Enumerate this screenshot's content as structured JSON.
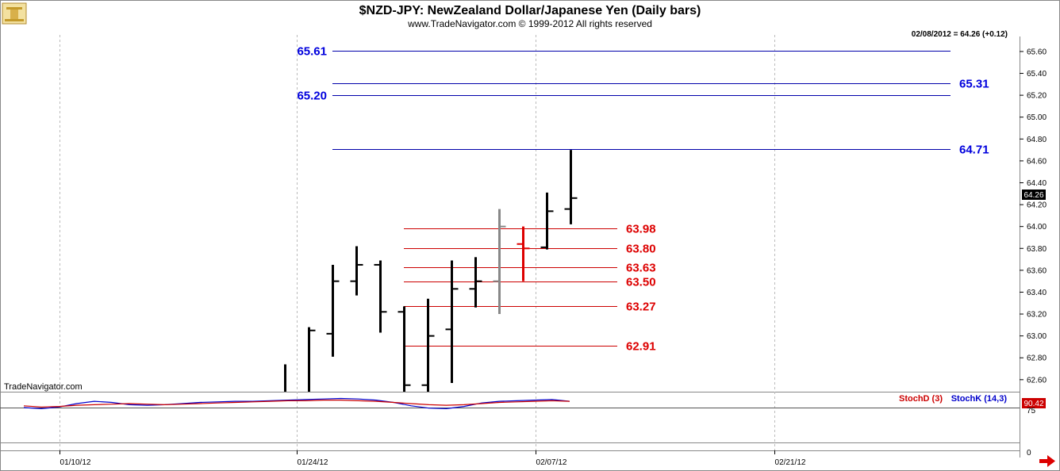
{
  "chart_data": {
    "type": "ohlc",
    "title": "$NZD-JPY:  NewZealand Dollar/Japanese Yen  (Daily bars)",
    "subtitle": "www.TradeNavigator.com © 1999-2012 All rights reserved",
    "last_quote": "02/08/2012 = 64.26 (+0.12)",
    "current_price_label": "64.26",
    "watermark": "TradeNavigator.com",
    "ylim": [
      62.49,
      65.73
    ],
    "y_ticks": [
      "65.60",
      "65.40",
      "65.20",
      "65.00",
      "64.80",
      "64.60",
      "64.40",
      "64.20",
      "64.00",
      "63.80",
      "63.60",
      "63.40",
      "63.20",
      "63.00",
      "62.80",
      "62.60"
    ],
    "x_tick_labels": [
      "01/10/12",
      "01/24/12",
      "02/07/12",
      "02/21/12"
    ],
    "bars": [
      {
        "date": "01/23/12",
        "high": 62.74,
        "low": 62.49,
        "open": null,
        "close": null,
        "color": "#000000"
      },
      {
        "date": "01/24/12",
        "high": 63.08,
        "low": 62.49,
        "open": null,
        "close": 63.05,
        "color": "#000000"
      },
      {
        "date": "01/25/12",
        "high": 63.65,
        "low": 62.81,
        "open": 63.02,
        "close": 63.5,
        "color": "#000000"
      },
      {
        "date": "01/26/12",
        "high": 63.82,
        "low": 63.37,
        "open": 63.5,
        "close": 63.65,
        "color": "#000000"
      },
      {
        "date": "01/27/12",
        "high": 63.69,
        "low": 63.03,
        "open": 63.65,
        "close": 63.22,
        "color": "#000000"
      },
      {
        "date": "01/30/12",
        "high": 63.27,
        "low": 62.49,
        "open": 63.22,
        "close": 62.55,
        "color": "#000000"
      },
      {
        "date": "01/31/12",
        "high": 63.34,
        "low": 62.49,
        "open": 62.55,
        "close": 63.0,
        "color": "#000000"
      },
      {
        "date": "02/01/12",
        "high": 63.69,
        "low": 62.57,
        "open": 63.06,
        "close": 63.43,
        "color": "#000000"
      },
      {
        "date": "02/02/12",
        "high": 63.72,
        "low": 63.26,
        "open": 63.43,
        "close": 63.5,
        "color": "#000000"
      },
      {
        "date": "02/03/12",
        "high": 64.16,
        "low": 63.2,
        "open": 63.5,
        "close": 64.0,
        "color": "#888888"
      },
      {
        "date": "02/06/12",
        "high": 64.0,
        "low": 63.5,
        "open": 63.84,
        "close": 63.8,
        "color": "#dd0000"
      },
      {
        "date": "02/07/12",
        "high": 64.31,
        "low": 63.79,
        "open": 63.81,
        "close": 64.14,
        "color": "#000000"
      },
      {
        "date": "02/08/12",
        "high": 64.7,
        "low": 64.02,
        "open": 64.16,
        "close": 64.26,
        "color": "#000000"
      }
    ],
    "levels_blue": [
      {
        "value": 65.61,
        "label": "65.61",
        "label_side": "left"
      },
      {
        "value": 65.31,
        "label": "65.31",
        "label_side": "right"
      },
      {
        "value": 65.2,
        "label": "65.20",
        "label_side": "left"
      },
      {
        "value": 64.71,
        "label": "64.71",
        "label_side": "right"
      }
    ],
    "levels_red": [
      {
        "value": 63.98,
        "label": "63.98"
      },
      {
        "value": 63.8,
        "label": "63.80"
      },
      {
        "value": 63.63,
        "label": "63.63"
      },
      {
        "value": 63.5,
        "label": "63.50"
      },
      {
        "value": 63.27,
        "label": "63.27"
      },
      {
        "value": 62.91,
        "label": "62.91"
      }
    ],
    "stochastic": {
      "ylim": [
        0,
        100
      ],
      "ref_level": 75,
      "tick_75": "75",
      "tick_0": "0",
      "value_label": "90.42",
      "legend_d": "StochD (3)",
      "legend_k": "StochK (14,3)",
      "stoch_d": [
        78,
        76,
        77,
        79,
        80,
        81,
        82,
        81,
        80,
        81,
        82,
        83,
        84,
        85,
        86,
        87,
        87,
        88,
        88,
        87,
        86,
        84,
        82,
        80,
        79,
        80,
        82,
        84,
        85,
        86,
        87,
        86
      ],
      "stoch_k": [
        75,
        73,
        76,
        82,
        86,
        84,
        80,
        79,
        80,
        82,
        84,
        85,
        86,
        86,
        87,
        88,
        89,
        90,
        91,
        90,
        88,
        84,
        78,
        74,
        73,
        77,
        83,
        86,
        87,
        88,
        89,
        86
      ]
    }
  },
  "colors": {
    "blue_level": "#0000aa",
    "blue_label": "#0000dd",
    "red_level": "#cc0000",
    "red_label": "#dd0000",
    "stoch_d": "#cc0000",
    "stoch_k": "#0000cc",
    "grid": "#bbbbbb",
    "current_price_bg": "#000000",
    "value_label_bg": "#cc0000"
  }
}
